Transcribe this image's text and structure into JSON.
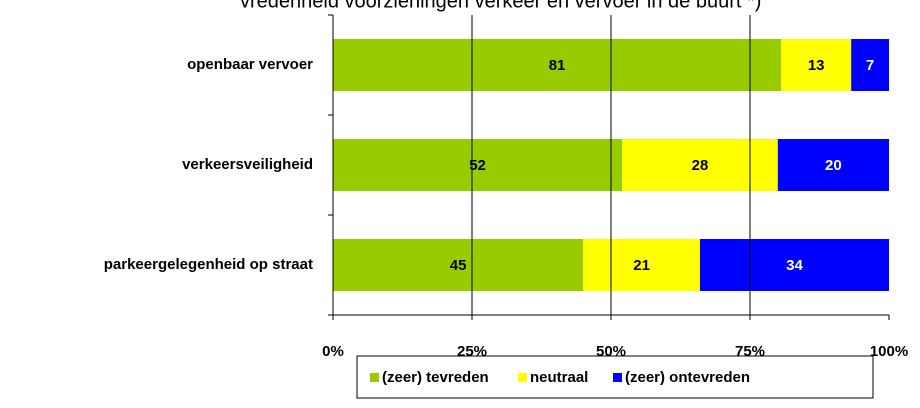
{
  "chart_data": {
    "type": "stacked-bar-horizontal",
    "title": "vredenheid voorzieningen verkeer en vervoer in de buurt *)",
    "categories": [
      "openbaar vervoer",
      "verkeersveiligheid",
      "parkeergelegenheid op straat"
    ],
    "series": [
      {
        "name": "(zeer) tevreden",
        "color": "#99cc00",
        "values": [
          80.6,
          52,
          45
        ],
        "value_labels": [
          "81",
          "52",
          "45"
        ]
      },
      {
        "name": "neutraal",
        "color": "#ffff00",
        "values": [
          12.6,
          28,
          21
        ],
        "value_labels": [
          "13",
          "28",
          "21"
        ]
      },
      {
        "name": "(zeer) ontevreden",
        "color": "#0000ff",
        "values": [
          6.8,
          20,
          34
        ],
        "value_labels": [
          "7",
          "20",
          "34"
        ]
      }
    ],
    "xlim": [
      0,
      100
    ],
    "xticks": [
      {
        "value": 0,
        "label": "0%"
      },
      {
        "value": 25,
        "label": "25%"
      },
      {
        "value": 50,
        "label": "50%"
      },
      {
        "value": 75,
        "label": "75%"
      },
      {
        "value": 100,
        "label": "100%"
      }
    ],
    "grid": true,
    "legend": "bottom"
  }
}
